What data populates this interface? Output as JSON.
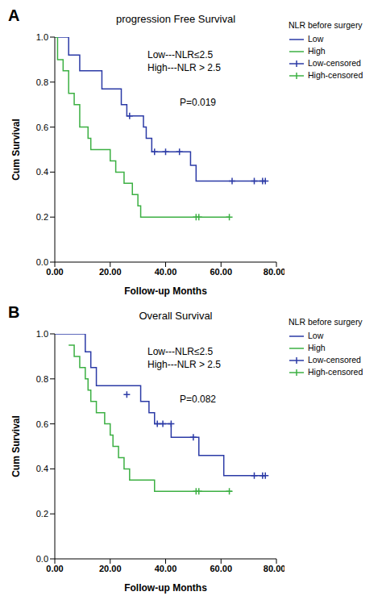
{
  "chart_data": [
    {
      "type": "line",
      "panel": "A",
      "title": "progression Free Survival",
      "x_label": "Follow-up Months",
      "y_label": "Cum Survival",
      "annotations": [
        "Low---NLR≤2.5",
        "High---NLR > 2.5",
        "P=0.019"
      ],
      "legend_title": "NLR before surgery",
      "xlim": [
        0,
        80
      ],
      "xticks": [
        {
          "value": 0,
          "label": "0.00"
        },
        {
          "value": 20,
          "label": "20.00"
        },
        {
          "value": 40,
          "label": "40.00"
        },
        {
          "value": 60,
          "label": "60.00"
        },
        {
          "value": 80,
          "label": "80.00"
        }
      ],
      "ylim": [
        0,
        1
      ],
      "yticks": [
        {
          "value": 0,
          "label": "0.0"
        },
        {
          "value": 0.2,
          "label": "0.2"
        },
        {
          "value": 0.4,
          "label": "0.4"
        },
        {
          "value": 0.6,
          "label": "0.6"
        },
        {
          "value": 0.8,
          "label": "0.8"
        },
        {
          "value": 1,
          "label": "1.0"
        }
      ],
      "series": [
        {
          "name": "Low",
          "color": "#2b3aa6",
          "line_style": "step",
          "x": [
            0,
            5,
            9,
            17,
            24,
            26,
            32,
            33,
            35,
            49,
            51,
            76
          ],
          "values": [
            1,
            0.92,
            0.85,
            0.77,
            0.7,
            0.65,
            0.6,
            0.55,
            0.49,
            0.43,
            0.36,
            0.36
          ]
        },
        {
          "name": "High",
          "color": "#3cb043",
          "line_style": "step",
          "x": [
            0,
            1,
            3,
            5,
            7,
            9,
            12,
            13,
            20,
            22,
            25,
            28,
            30,
            31,
            63
          ],
          "values": [
            1,
            0.9,
            0.85,
            0.75,
            0.7,
            0.6,
            0.55,
            0.5,
            0.45,
            0.4,
            0.35,
            0.3,
            0.25,
            0.2,
            0.2
          ]
        },
        {
          "name": "Low-censored",
          "color": "#2b3aa6",
          "type": "scatter",
          "marker": "plus",
          "x": [
            27,
            36,
            40,
            45,
            64,
            72,
            75,
            76
          ],
          "values": [
            0.65,
            0.49,
            0.49,
            0.49,
            0.36,
            0.36,
            0.36,
            0.36
          ]
        },
        {
          "name": "High-censored",
          "color": "#3cb043",
          "type": "scatter",
          "marker": "plus",
          "x": [
            51,
            52,
            63
          ],
          "values": [
            0.2,
            0.2,
            0.2
          ]
        }
      ]
    },
    {
      "type": "line",
      "panel": "B",
      "title": "Overall Survival",
      "x_label": "Follow-up Months",
      "y_label": "Cum Survival",
      "annotations": [
        "Low---NLR≤2.5",
        "High---NLR > 2.5",
        "P=0.082"
      ],
      "legend_title": "NLR before surgery",
      "xlim": [
        0,
        80
      ],
      "xticks": [
        {
          "value": 0,
          "label": "0.00"
        },
        {
          "value": 20,
          "label": "20.00"
        },
        {
          "value": 40,
          "label": "40.00"
        },
        {
          "value": 60,
          "label": "60.00"
        },
        {
          "value": 80,
          "label": "80.00"
        }
      ],
      "ylim": [
        0,
        1
      ],
      "yticks": [
        {
          "value": 0,
          "label": "0.0"
        },
        {
          "value": 0.2,
          "label": "0.2"
        },
        {
          "value": 0.4,
          "label": "0.4"
        },
        {
          "value": 0.6,
          "label": "0.6"
        },
        {
          "value": 0.8,
          "label": "0.8"
        },
        {
          "value": 1,
          "label": "1.0"
        }
      ],
      "series": [
        {
          "name": "Low",
          "color": "#2b3aa6",
          "line_style": "step",
          "x": [
            0,
            10,
            11,
            13,
            15,
            31,
            34,
            36,
            42,
            52,
            61,
            76
          ],
          "values": [
            1,
            1,
            0.92,
            0.85,
            0.77,
            0.7,
            0.65,
            0.6,
            0.54,
            0.46,
            0.37,
            0.37
          ]
        },
        {
          "name": "High",
          "color": "#3cb043",
          "line_style": "step",
          "x": [
            5,
            7,
            9,
            11,
            12,
            13,
            15,
            18,
            20,
            21,
            23,
            25,
            27,
            36,
            64
          ],
          "values": [
            0.95,
            0.9,
            0.85,
            0.8,
            0.75,
            0.7,
            0.65,
            0.6,
            0.55,
            0.5,
            0.45,
            0.4,
            0.35,
            0.3,
            0.3
          ]
        },
        {
          "name": "Low-censored",
          "color": "#2b3aa6",
          "type": "scatter",
          "marker": "plus",
          "x": [
            26,
            37,
            39,
            42,
            50,
            72,
            75,
            76
          ],
          "values": [
            0.73,
            0.6,
            0.6,
            0.6,
            0.54,
            0.37,
            0.37,
            0.37
          ]
        },
        {
          "name": "High-censored",
          "color": "#3cb043",
          "type": "scatter",
          "marker": "plus",
          "x": [
            51,
            52,
            63
          ],
          "values": [
            0.3,
            0.3,
            0.3
          ]
        }
      ]
    }
  ]
}
